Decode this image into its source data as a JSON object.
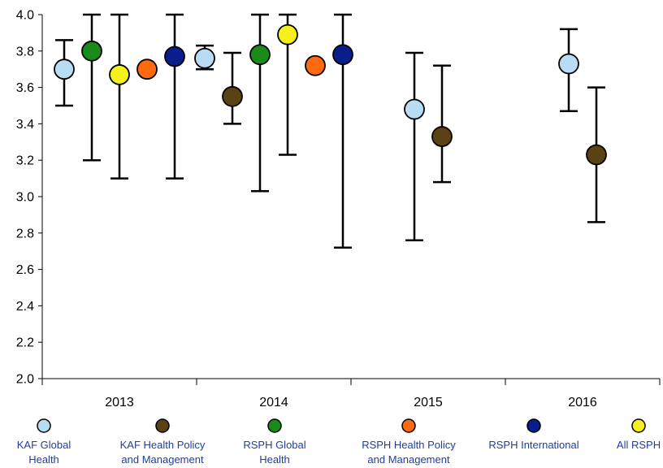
{
  "chart_data": {
    "type": "scatter",
    "title": "",
    "xlabel": "",
    "ylabel": "",
    "categories": [
      "2013",
      "2014",
      "2015",
      "2016"
    ],
    "ylim": [
      2.0,
      4.0
    ],
    "yticks": [
      "2.0",
      "2.2",
      "2.4",
      "2.6",
      "2.8",
      "3.0",
      "3.2",
      "3.4",
      "3.6",
      "3.8",
      "4.0"
    ],
    "grid": false,
    "legend_position": "bottom",
    "series": [
      {
        "name": "KAF  Global Health",
        "color": "#b9dcf5",
        "points": [
          {
            "year": "2013",
            "value": 3.7,
            "low": 3.5,
            "high": 3.86
          },
          {
            "year": "2014",
            "value": 3.76,
            "low": 3.7,
            "high": 3.83
          },
          {
            "year": "2015",
            "value": 3.48,
            "low": 2.76,
            "high": 3.79
          },
          {
            "year": "2016",
            "value": 3.73,
            "low": 3.47,
            "high": 3.92
          }
        ]
      },
      {
        "name": "KAF Health Policy and Management",
        "color": "#5a4214",
        "points": [
          {
            "year": "2014",
            "value": 3.55,
            "low": 3.4,
            "high": 3.79
          },
          {
            "year": "2015",
            "value": 3.33,
            "low": 3.08,
            "high": 3.72
          },
          {
            "year": "2016",
            "value": 3.23,
            "low": 2.86,
            "high": 3.6
          }
        ]
      },
      {
        "name": "RSPH  Global Health",
        "color": "#1a8a1a",
        "points": [
          {
            "year": "2013",
            "value": 3.8,
            "low": 3.2,
            "high": 4.0
          },
          {
            "year": "2014",
            "value": 3.78,
            "low": 3.03,
            "high": 4.0
          }
        ]
      },
      {
        "name": "RSPH Health Policy and Management",
        "color": "#ff6a10",
        "points": [
          {
            "year": "2013",
            "value": 3.7
          },
          {
            "year": "2014",
            "value": 3.72
          }
        ]
      },
      {
        "name": "RSPH International",
        "color": "#0a1d8c",
        "points": [
          {
            "year": "2013",
            "value": 3.77,
            "low": 3.1,
            "high": 4.0
          },
          {
            "year": "2014",
            "value": 3.78,
            "low": 2.72,
            "high": 4.0
          }
        ]
      },
      {
        "name": "All RSPH",
        "color": "#f5f01a",
        "points": [
          {
            "year": "2013",
            "value": 3.67,
            "low": 3.1,
            "high": 4.0
          },
          {
            "year": "2014",
            "value": 3.89,
            "low": 3.23,
            "high": 4.0
          }
        ]
      }
    ],
    "legend": [
      {
        "series": "KAF  Global Health",
        "lines": [
          "KAF  Global",
          "Health"
        ]
      },
      {
        "series": "KAF Health Policy and Management",
        "lines": [
          "KAF Health Policy",
          "and Management"
        ]
      },
      {
        "series": "RSPH  Global Health",
        "lines": [
          "RSPH  Global",
          "Health"
        ]
      },
      {
        "series": "RSPH Health Policy and Management",
        "lines": [
          "RSPH Health Policy",
          "and Management"
        ]
      },
      {
        "series": "RSPH International",
        "lines": [
          "RSPH International"
        ]
      },
      {
        "series": "All RSPH",
        "lines": [
          "All RSPH"
        ]
      }
    ]
  }
}
